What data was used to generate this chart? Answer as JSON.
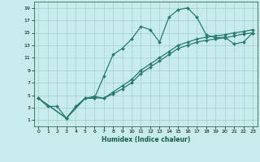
{
  "xlabel": "Humidex (Indice chaleur)",
  "bg_color": "#c8ecec",
  "grid_color": "#aad4d4",
  "line_color": "#2a7a6a",
  "xlim": [
    -0.5,
    23.5
  ],
  "ylim": [
    0,
    20
  ],
  "xticks": [
    0,
    1,
    2,
    3,
    4,
    5,
    6,
    7,
    8,
    9,
    10,
    11,
    12,
    13,
    14,
    15,
    16,
    17,
    18,
    19,
    20,
    21,
    22,
    23
  ],
  "yticks": [
    1,
    3,
    5,
    7,
    9,
    11,
    13,
    15,
    17,
    19
  ],
  "series1_x": [
    0,
    1,
    2,
    3,
    4,
    5,
    6,
    7,
    8,
    9,
    10,
    11,
    12,
    13,
    14,
    15,
    16,
    17,
    18,
    19,
    20,
    21,
    22,
    23
  ],
  "series1_y": [
    4.5,
    3.2,
    3.2,
    1.3,
    3.2,
    4.5,
    4.5,
    8.0,
    11.5,
    12.5,
    14.0,
    16.0,
    15.5,
    13.5,
    17.5,
    18.7,
    19.0,
    17.5,
    14.7,
    14.2,
    14.3,
    13.2,
    13.5,
    15.0
  ],
  "series2_x": [
    0,
    3,
    5,
    6,
    7,
    8,
    9,
    10,
    11,
    12,
    13,
    14,
    15,
    16,
    17,
    18,
    19,
    20,
    21,
    22,
    23
  ],
  "series2_y": [
    4.5,
    1.3,
    4.5,
    4.8,
    4.5,
    5.5,
    6.5,
    7.5,
    9.0,
    10.0,
    11.0,
    12.0,
    13.0,
    13.5,
    14.0,
    14.3,
    14.5,
    14.7,
    15.0,
    15.2,
    15.5
  ],
  "series3_x": [
    0,
    3,
    5,
    6,
    7,
    8,
    9,
    10,
    11,
    12,
    13,
    14,
    15,
    16,
    17,
    18,
    19,
    20,
    21,
    22,
    23
  ],
  "series3_y": [
    4.5,
    1.3,
    4.5,
    4.6,
    4.5,
    5.2,
    6.0,
    7.0,
    8.5,
    9.5,
    10.5,
    11.5,
    12.5,
    13.0,
    13.5,
    13.8,
    14.0,
    14.2,
    14.5,
    14.8,
    15.0
  ]
}
